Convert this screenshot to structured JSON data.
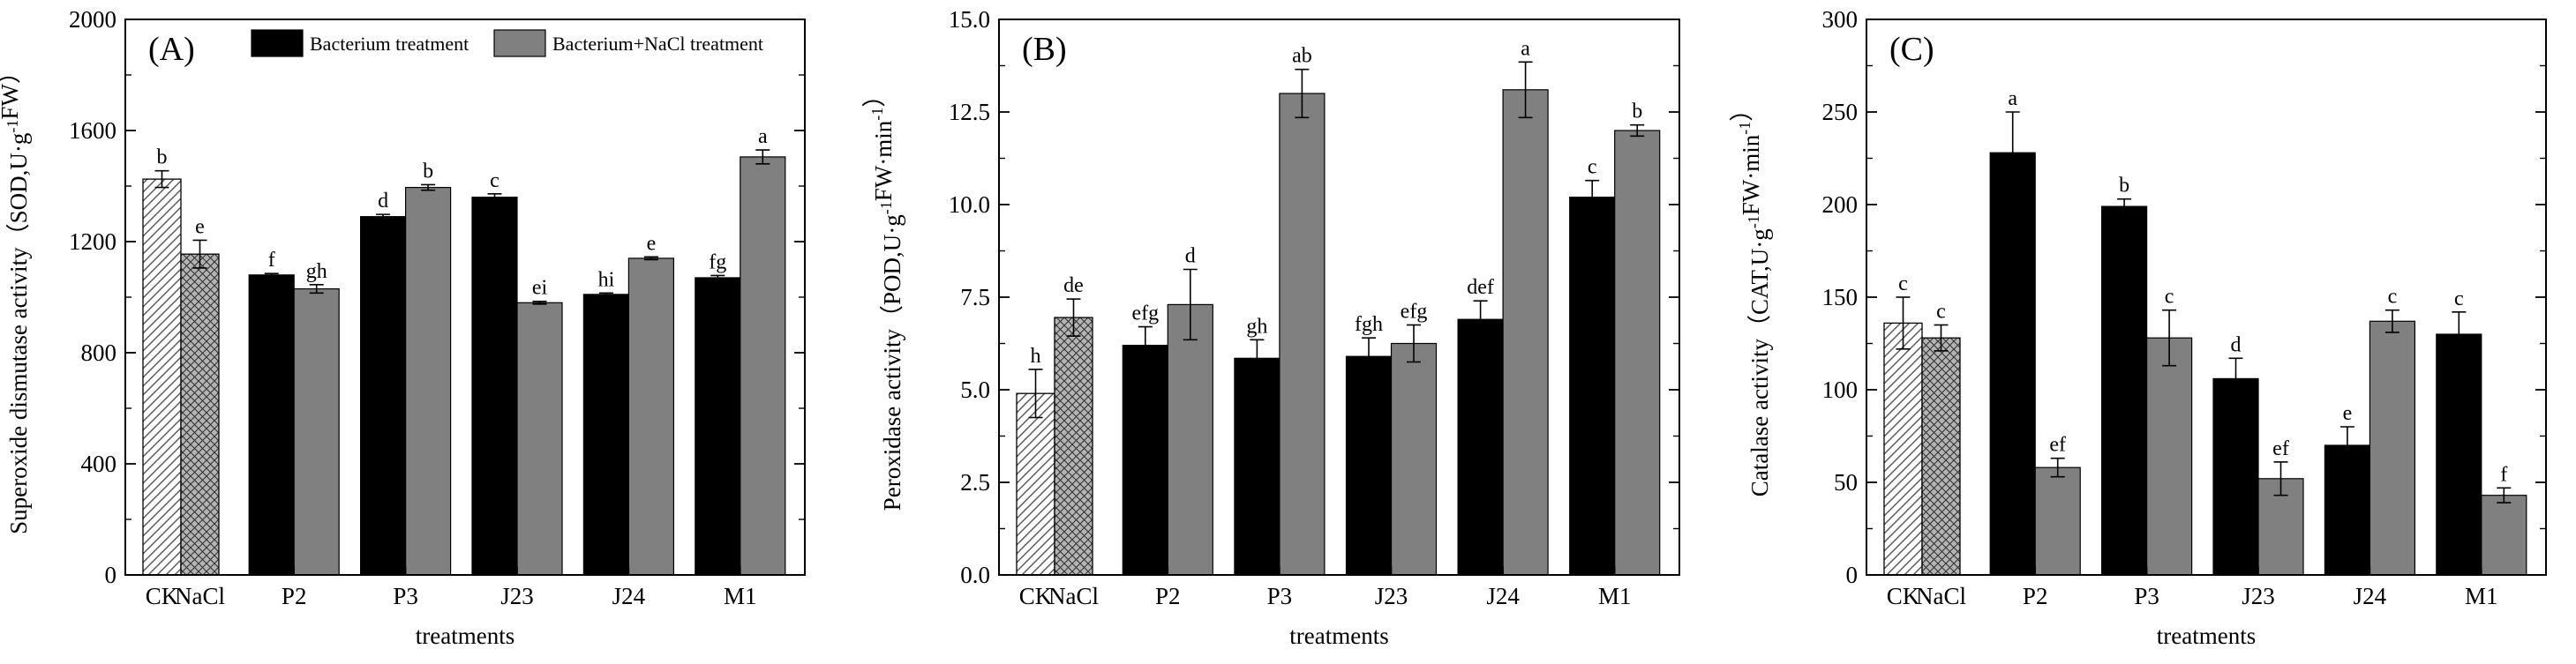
{
  "legend": {
    "series": [
      {
        "name": "Bacterium treatment",
        "color": "#000000"
      },
      {
        "name": "Bacterium+NaCl treatment",
        "color": "#808080"
      }
    ]
  },
  "chart_data": [
    {
      "type": "bar",
      "panel_label": "(A)",
      "xlabel": "treatments",
      "ylabel": "Superoxide dismutase activity（SOD,U·g⁻¹FW）",
      "ylim": [
        0,
        2000
      ],
      "yticks": [
        0,
        400,
        800,
        1200,
        1600,
        2000
      ],
      "ytick_labels": [
        "0",
        "400",
        "800",
        "1200",
        "1600",
        "2000"
      ],
      "controls": [
        {
          "name": "CK",
          "value": 1425,
          "err": 30,
          "letter": "b",
          "pattern": "hatch"
        },
        {
          "name": "NaCl",
          "value": 1155,
          "err": 50,
          "letter": "e",
          "pattern": "crosshatch"
        }
      ],
      "categories": [
        "P2",
        "P3",
        "J23",
        "J24",
        "M1"
      ],
      "series": [
        {
          "name": "Bacterium treatment",
          "values": [
            1080,
            1290,
            1360,
            1010,
            1070
          ],
          "errors": [
            5,
            8,
            12,
            5,
            8
          ],
          "letters": [
            "f",
            "d",
            "c",
            "hi",
            "fg"
          ]
        },
        {
          "name": "Bacterium+NaCl treatment",
          "values": [
            1030,
            1395,
            980,
            1140,
            1505
          ],
          "errors": [
            15,
            10,
            5,
            5,
            25
          ],
          "letters": [
            "gh",
            "b",
            "ei",
            "e",
            "a"
          ]
        }
      ]
    },
    {
      "type": "bar",
      "panel_label": "(B)",
      "xlabel": "treatments",
      "ylabel": "Peroxidase activity（POD,U·g⁻¹FW·min⁻¹）",
      "ylim": [
        0,
        15
      ],
      "yticks": [
        0,
        2.5,
        5,
        7.5,
        10,
        12.5,
        15
      ],
      "ytick_labels": [
        "0.0",
        "2.5",
        "5.0",
        "7.5",
        "10.0",
        "12.5",
        "15.0"
      ],
      "controls": [
        {
          "name": "CK",
          "value": 4.9,
          "err": 0.65,
          "letter": "h",
          "pattern": "hatch"
        },
        {
          "name": "NaCl",
          "value": 6.95,
          "err": 0.5,
          "letter": "de",
          "pattern": "crosshatch"
        }
      ],
      "categories": [
        "P2",
        "P3",
        "J23",
        "J24",
        "M1"
      ],
      "series": [
        {
          "name": "Bacterium treatment",
          "values": [
            6.2,
            5.85,
            5.9,
            6.9,
            10.2
          ],
          "errors": [
            0.5,
            0.5,
            0.5,
            0.5,
            0.45
          ],
          "letters": [
            "efg",
            "gh",
            "fgh",
            "def",
            "c"
          ]
        },
        {
          "name": "Bacterium+NaCl treatment",
          "values": [
            7.3,
            13.0,
            6.25,
            13.1,
            12.0
          ],
          "errors": [
            0.95,
            0.65,
            0.5,
            0.75,
            0.15
          ],
          "letters": [
            "d",
            "ab",
            "efg",
            "a",
            "b"
          ]
        }
      ]
    },
    {
      "type": "bar",
      "panel_label": "(C)",
      "xlabel": "treatments",
      "ylabel": "Catalase activity（CAT,U·g⁻¹FW·min⁻¹）",
      "ylim": [
        0,
        300
      ],
      "yticks": [
        0,
        50,
        100,
        150,
        200,
        250,
        300
      ],
      "ytick_labels": [
        "0",
        "50",
        "100",
        "150",
        "200",
        "250",
        "300"
      ],
      "controls": [
        {
          "name": "CK",
          "value": 136,
          "err": 14,
          "letter": "c",
          "pattern": "hatch"
        },
        {
          "name": "NaCl",
          "value": 128,
          "err": 7,
          "letter": "c",
          "pattern": "crosshatch"
        }
      ],
      "categories": [
        "P2",
        "P3",
        "J23",
        "J24",
        "M1"
      ],
      "series": [
        {
          "name": "Bacterium treatment",
          "values": [
            228,
            199,
            106,
            70,
            130
          ],
          "errors": [
            22,
            4,
            11,
            10,
            12
          ],
          "letters": [
            "a",
            "b",
            "d",
            "e",
            "c"
          ]
        },
        {
          "name": "Bacterium+NaCl treatment",
          "values": [
            58,
            128,
            52,
            137,
            43
          ],
          "errors": [
            5,
            15,
            9,
            6,
            4
          ],
          "letters": [
            "ef",
            "c",
            "ef",
            "c",
            "f"
          ]
        }
      ]
    }
  ]
}
